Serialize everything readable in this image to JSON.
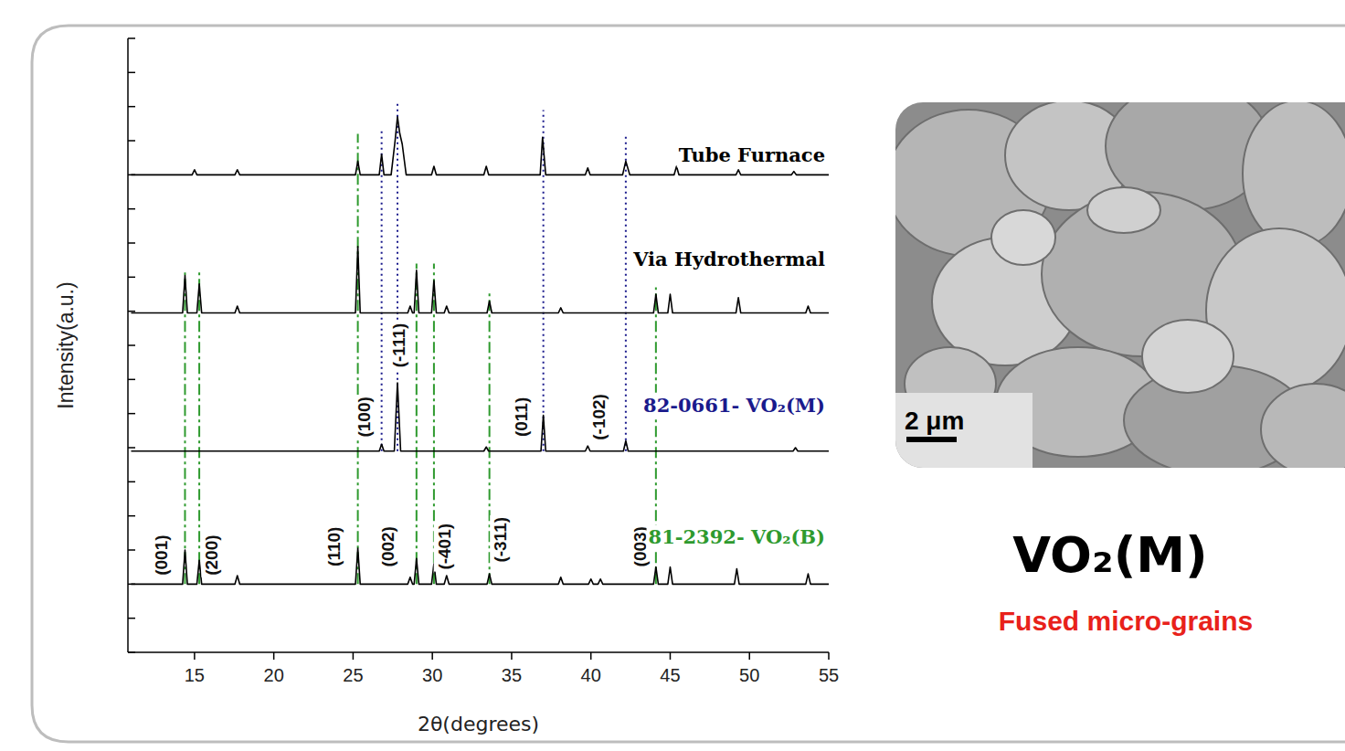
{
  "chart_data": {
    "type": "line",
    "x_label": "2θ(degrees)",
    "y_label": "Intensity(a.u.)",
    "xlim": [
      10.8,
      55
    ],
    "xticks": [
      15,
      20,
      25,
      30,
      35,
      40,
      45,
      50,
      55
    ],
    "ylim": [
      0,
      18
    ],
    "yticks": [
      0,
      1,
      2,
      3,
      4,
      5,
      6,
      7,
      8,
      9,
      10,
      11,
      12,
      13,
      14,
      15,
      16,
      17,
      18
    ],
    "tick_labels": "x",
    "grid": false,
    "series": [
      {
        "name": "Tube Furnace",
        "color": "#000000",
        "x": [
          11,
          14.85,
          15.0,
          15.15,
          17.55,
          17.7,
          17.85,
          25.15,
          25.3,
          25.45,
          26.65,
          26.8,
          26.95,
          27.4,
          27.65,
          27.8,
          27.95,
          28.1,
          28.35,
          29.95,
          30.1,
          30.25,
          33.25,
          33.4,
          33.55,
          36.8,
          36.95,
          37.15,
          39.65,
          39.8,
          39.95,
          42.0,
          42.2,
          42.45,
          45.25,
          45.4,
          45.55,
          49.15,
          49.3,
          49.45,
          52.65,
          52.8,
          52.95,
          55
        ],
        "values": [
          14.0,
          14.0,
          14.15,
          14.0,
          14.0,
          14.15,
          14.0,
          14.0,
          14.4,
          14.0,
          14.0,
          14.6,
          14.0,
          14.0,
          15.0,
          15.7,
          15.2,
          14.9,
          14.0,
          14.0,
          14.25,
          14.0,
          14.0,
          14.25,
          14.0,
          14.0,
          15.1,
          14.0,
          14.0,
          14.2,
          14.0,
          14.0,
          14.4,
          14.0,
          14.0,
          14.25,
          14.0,
          14.0,
          14.15,
          14.0,
          14.0,
          14.1,
          14.0,
          14.0
        ]
      },
      {
        "name": "Via Hydrothermal",
        "color": "#000000",
        "x": [
          11,
          14.25,
          14.4,
          14.55,
          15.15,
          15.3,
          15.45,
          17.55,
          17.7,
          17.85,
          25.15,
          25.3,
          25.45,
          28.45,
          28.6,
          28.75,
          28.85,
          29.0,
          29.15,
          29.95,
          30.1,
          30.25,
          30.75,
          30.9,
          31.05,
          33.45,
          33.6,
          33.75,
          37.95,
          38.1,
          38.25,
          43.95,
          44.1,
          44.25,
          44.85,
          45.0,
          45.15,
          49.15,
          49.3,
          49.45,
          53.55,
          53.7,
          53.85,
          55
        ],
        "values": [
          9.95,
          9.95,
          11.05,
          9.95,
          9.95,
          10.8,
          9.95,
          9.95,
          10.15,
          9.95,
          9.95,
          11.9,
          9.95,
          9.95,
          10.15,
          9.95,
          9.95,
          11.2,
          9.95,
          9.95,
          10.9,
          9.95,
          9.95,
          10.15,
          9.95,
          9.95,
          10.3,
          9.95,
          9.95,
          10.1,
          9.95,
          9.95,
          10.5,
          9.95,
          9.95,
          10.5,
          9.95,
          9.95,
          10.4,
          9.95,
          9.95,
          10.15,
          9.95,
          9.95
        ]
      },
      {
        "name": "82-0661- VO₂(M)",
        "color": "#000000",
        "x": [
          11,
          26.65,
          26.8,
          26.95,
          27.6,
          27.8,
          28.0,
          33.25,
          33.4,
          33.55,
          36.85,
          37.0,
          37.15,
          39.65,
          39.8,
          39.95,
          42.05,
          42.2,
          42.35,
          52.75,
          52.9,
          53.05,
          55
        ],
        "values": [
          5.9,
          5.9,
          6.1,
          5.9,
          5.9,
          7.9,
          5.9,
          5.9,
          6.02,
          5.9,
          5.9,
          6.95,
          5.9,
          5.9,
          6.05,
          5.9,
          5.9,
          6.2,
          5.9,
          5.9,
          6.0,
          5.9,
          5.9
        ]
      },
      {
        "name": "81-2392- VO₂(B)",
        "color": "#000000",
        "x": [
          11,
          14.25,
          14.4,
          14.55,
          15.15,
          15.3,
          15.45,
          17.55,
          17.7,
          17.85,
          25.15,
          25.3,
          25.45,
          28.45,
          28.6,
          28.75,
          28.85,
          29.0,
          29.15,
          29.95,
          30.1,
          30.25,
          30.75,
          30.9,
          31.05,
          33.45,
          33.6,
          33.75,
          37.95,
          38.1,
          38.25,
          39.85,
          40.0,
          40.15,
          40.45,
          40.6,
          40.75,
          43.95,
          44.1,
          44.25,
          44.85,
          45.0,
          45.15,
          49.05,
          49.2,
          49.35,
          53.55,
          53.7,
          53.85,
          55
        ],
        "values": [
          2.0,
          2.0,
          3.0,
          2.0,
          2.0,
          2.7,
          2.0,
          2.0,
          2.25,
          2.0,
          2.0,
          3.05,
          2.0,
          2.0,
          2.2,
          2.0,
          2.0,
          2.75,
          2.0,
          2.0,
          2.6,
          2.0,
          2.0,
          2.25,
          2.0,
          2.0,
          2.3,
          2.0,
          2.0,
          2.2,
          2.0,
          2.0,
          2.15,
          2.0,
          2.0,
          2.15,
          2.0,
          2.0,
          2.5,
          2.0,
          2.0,
          2.5,
          2.0,
          2.0,
          2.45,
          2.0,
          2.0,
          2.3,
          2.0,
          2.0
        ]
      }
    ],
    "reference_lines": [
      {
        "color": "#2e9a2e",
        "line_style": "dashdot",
        "lines": [
          {
            "x": 14.4,
            "y": [
              2.0,
              11.2
            ]
          },
          {
            "x": 15.3,
            "y": [
              2.0,
              11.2
            ]
          },
          {
            "x": 25.3,
            "y": [
              2.0,
              15.2
            ]
          },
          {
            "x": 29.0,
            "y": [
              2.0,
              11.4
            ]
          },
          {
            "x": 30.1,
            "y": [
              2.0,
              11.4
            ]
          },
          {
            "x": 33.6,
            "y": [
              2.0,
              10.6
            ]
          },
          {
            "x": 44.1,
            "y": [
              2.0,
              10.7
            ]
          }
        ]
      },
      {
        "color": "#1a1a8c",
        "line_style": "dotted",
        "lines": [
          {
            "x": 26.8,
            "y": [
              5.9,
              15.3
            ]
          },
          {
            "x": 27.8,
            "y": [
              5.9,
              16.1
            ]
          },
          {
            "x": 37.0,
            "y": [
              5.9,
              15.9
            ]
          },
          {
            "x": 42.2,
            "y": [
              5.9,
              15.2
            ]
          }
        ]
      }
    ],
    "annotations": [
      {
        "text": "(001)",
        "x": 12.9,
        "y": 2.85
      },
      {
        "text": "(200)",
        "x": 16.1,
        "y": 2.85
      },
      {
        "text": "(110)",
        "x": 23.8,
        "y": 3.1
      },
      {
        "text": "(002)",
        "x": 27.2,
        "y": 3.1
      },
      {
        "text": "(-401)",
        "x": 30.75,
        "y": 3.1
      },
      {
        "text": "(-311)",
        "x": 34.3,
        "y": 3.3
      },
      {
        "text": "(003)",
        "x": 43.1,
        "y": 3.1
      },
      {
        "text": "(100)",
        "x": 25.7,
        "y": 6.9
      },
      {
        "text": "(-111)",
        "x": 27.9,
        "y": 9.0
      },
      {
        "text": "(011)",
        "x": 35.6,
        "y": 6.9
      },
      {
        "text": "(-102)",
        "x": 40.5,
        "y": 6.9
      }
    ]
  },
  "image": {
    "scale_bar": "2 μm",
    "caption": "VO₂(M)",
    "subtitle": "Fused micro-grains"
  }
}
